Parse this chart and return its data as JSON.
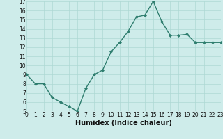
{
  "x": [
    0,
    1,
    2,
    3,
    4,
    5,
    6,
    7,
    8,
    9,
    10,
    11,
    12,
    13,
    14,
    15,
    16,
    17,
    18,
    19,
    20,
    21,
    22,
    23
  ],
  "y": [
    9,
    8,
    8,
    6.5,
    6,
    5.5,
    5,
    7.5,
    9,
    9.5,
    11.5,
    12.5,
    13.7,
    15.3,
    15.5,
    17,
    14.8,
    13.3,
    13.3,
    13.4,
    12.5,
    12.5,
    12.5,
    12.5
  ],
  "line_color": "#2e7d6e",
  "marker": "D",
  "markersize": 2.0,
  "linewidth": 1.0,
  "bg_color": "#ceecea",
  "grid_color": "#aed8d4",
  "xlabel": "Humidex (Indice chaleur)",
  "xlabel_fontsize": 7,
  "ylim": [
    5,
    17
  ],
  "xlim": [
    0,
    23
  ],
  "yticks": [
    5,
    6,
    7,
    8,
    9,
    10,
    11,
    12,
    13,
    14,
    15,
    16,
    17
  ],
  "xticks": [
    0,
    1,
    2,
    3,
    4,
    5,
    6,
    7,
    8,
    9,
    10,
    11,
    12,
    13,
    14,
    15,
    16,
    17,
    18,
    19,
    20,
    21,
    22,
    23
  ],
  "tick_fontsize": 5.5
}
